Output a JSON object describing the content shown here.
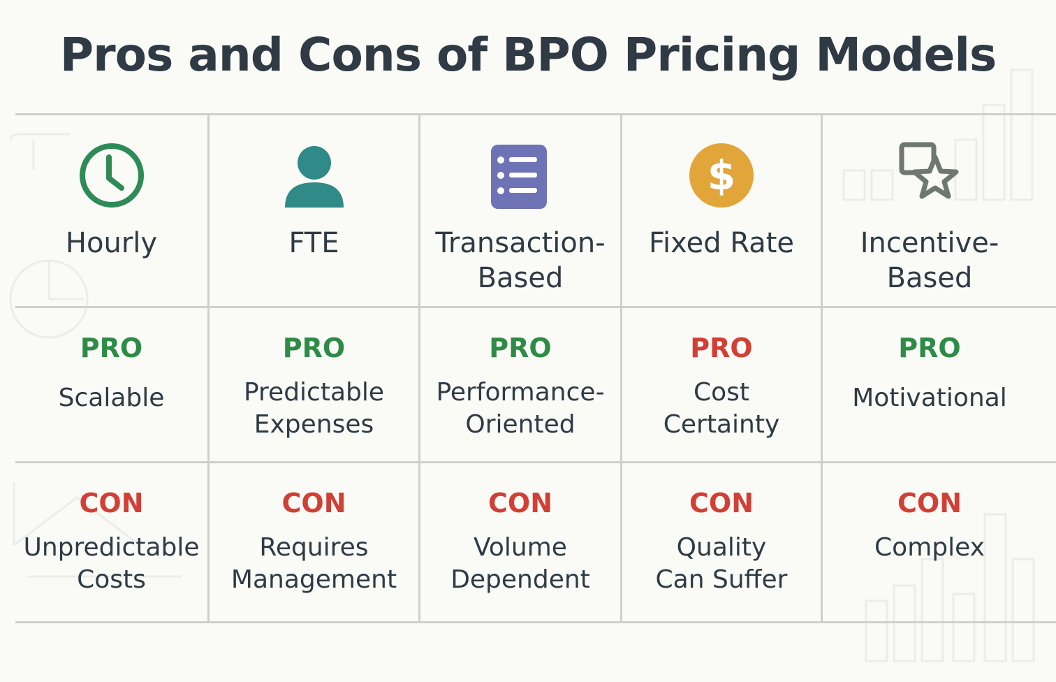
{
  "title": "Pros and Cons of BPO Pricing Models",
  "colors": {
    "background": "#fafaf6",
    "text": "#2f3a44",
    "pro_green": "#2e8b47",
    "pro_red": "#d23f35",
    "con_red": "#d23f35",
    "hourly_icon": "#2e8b57",
    "fte_icon": "#2f8a88",
    "transaction_icon": "#6e73b6",
    "fixed_rate_icon": "#e1a53a",
    "incentive_icon": "#6e7772"
  },
  "models": [
    {
      "name_line1": "Hourly",
      "name_line2": "",
      "icon": "clock-icon",
      "pro_label": "PRO",
      "pro_color": "green",
      "pro_line1": "Scalable",
      "pro_line2": "",
      "con_label": "CON",
      "con_line1": "Unpredictable",
      "con_line2": "Costs"
    },
    {
      "name_line1": "FTE",
      "name_line2": "",
      "icon": "person-icon",
      "pro_label": "PRO",
      "pro_color": "green",
      "pro_line1": "Predictable",
      "pro_line2": "Expenses",
      "con_label": "CON",
      "con_line1": "Requires",
      "con_line2": "Management"
    },
    {
      "name_line1": "Transaction-",
      "name_line2": "Based",
      "icon": "list-icon",
      "pro_label": "PRO",
      "pro_color": "green",
      "pro_line1": "Performance-",
      "pro_line2": "Oriented",
      "con_label": "CON",
      "con_line1": "Volume",
      "con_line2": "Dependent"
    },
    {
      "name_line1": "Fixed Rate",
      "name_line2": "",
      "icon": "dollar-coin-icon",
      "pro_label": "PRO",
      "pro_color": "red",
      "pro_line1": "Cost",
      "pro_line2": "Certainty",
      "con_label": "CON",
      "con_line1": "Quality",
      "con_line2": "Can Suffer"
    },
    {
      "name_line1": "Incentive-",
      "name_line2": "Based",
      "icon": "star-badge-icon",
      "pro_label": "PRO",
      "pro_color": "green",
      "pro_line1": "Motivational",
      "pro_line2": "",
      "con_label": "CON",
      "con_line1": "Complex",
      "con_line2": ""
    }
  ]
}
